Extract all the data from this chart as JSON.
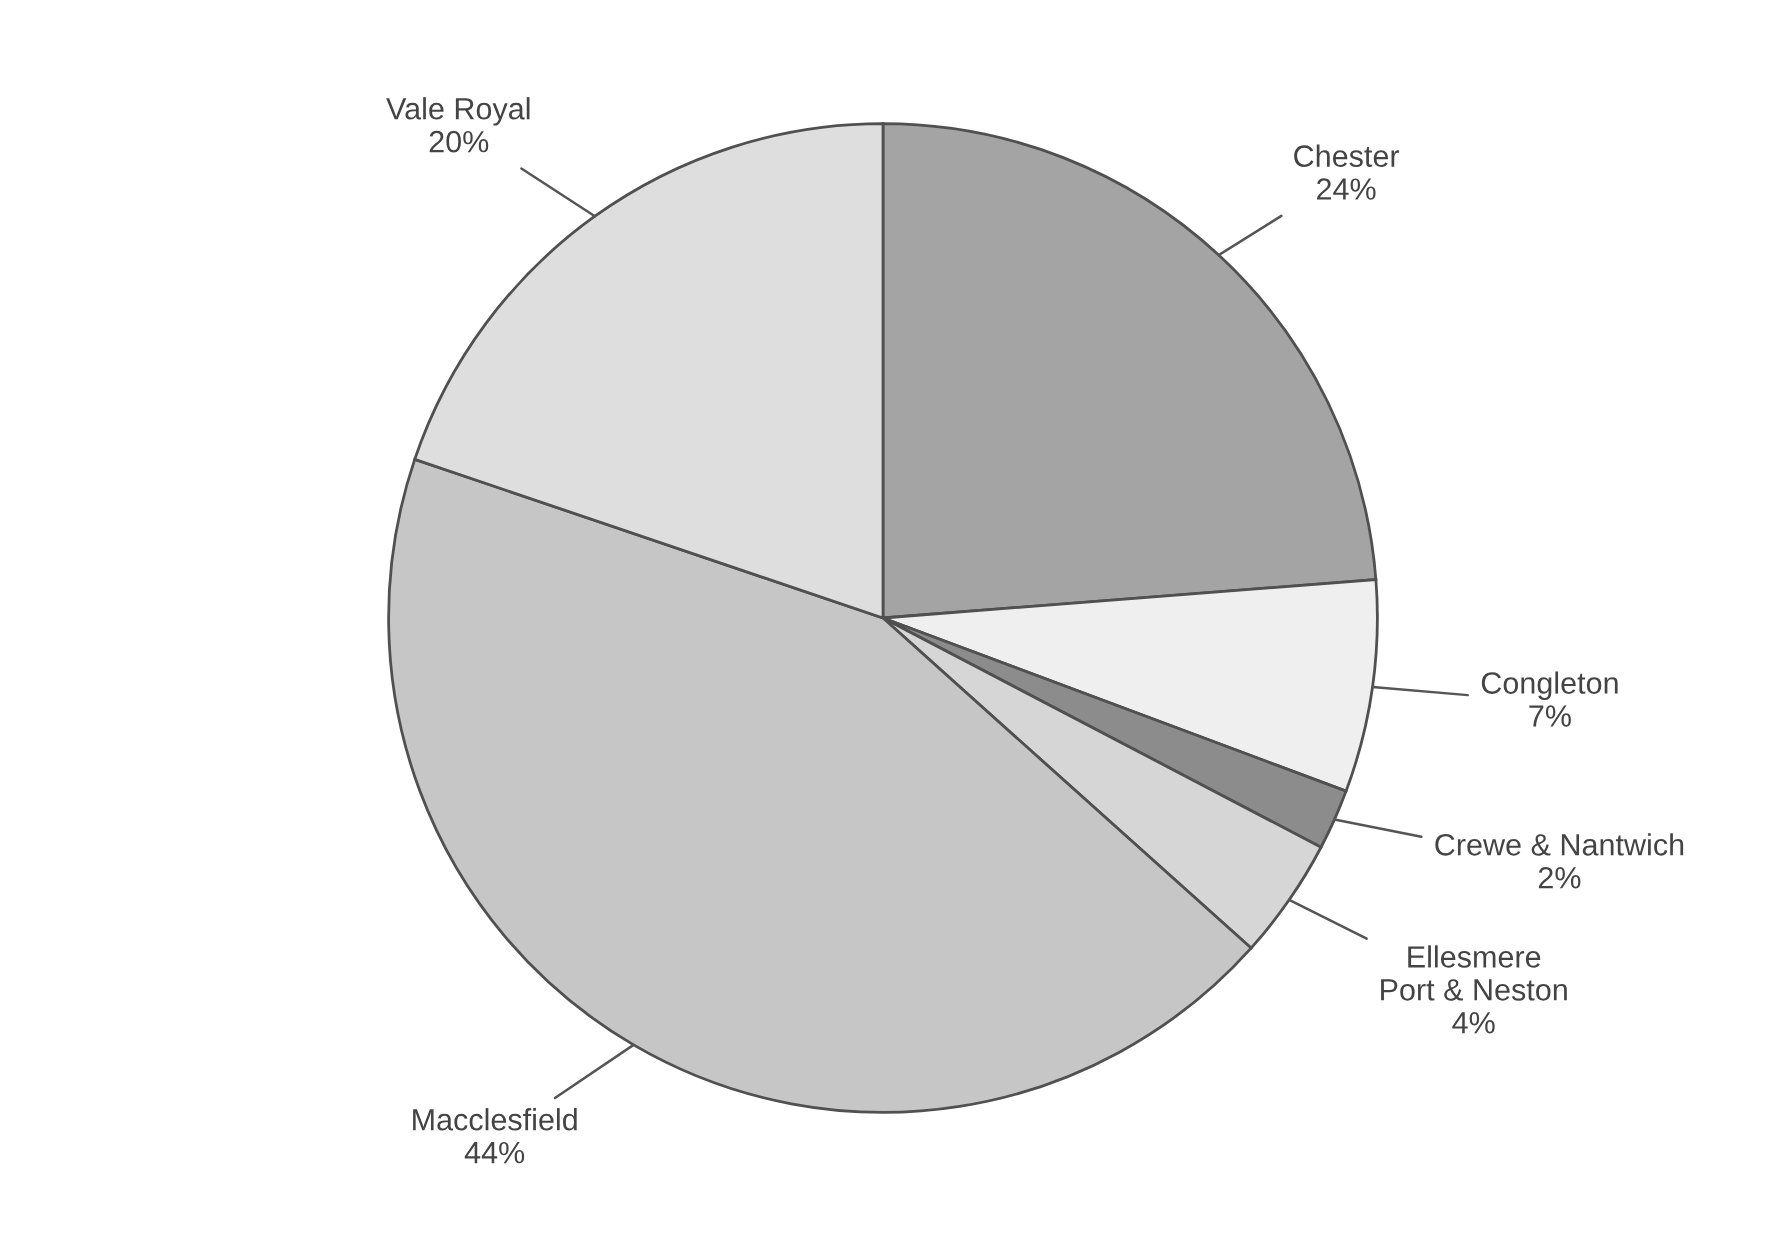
{
  "chart_data": {
    "type": "pie",
    "categories": [
      "Chester",
      "Congleton",
      "Crewe & Nantwich",
      "Ellesmere Port & Neston",
      "Macclesfield",
      "Vale Royal"
    ],
    "values": [
      24,
      7,
      2,
      4,
      44,
      20
    ],
    "value_labels": [
      "24%",
      "7%",
      "2%",
      "4%",
      "44%",
      "20%"
    ],
    "colors": [
      "#a4a4a4",
      "#efefef",
      "#8c8c8c",
      "#d6d6d6",
      "#c6c6c6",
      "#dedede"
    ]
  }
}
